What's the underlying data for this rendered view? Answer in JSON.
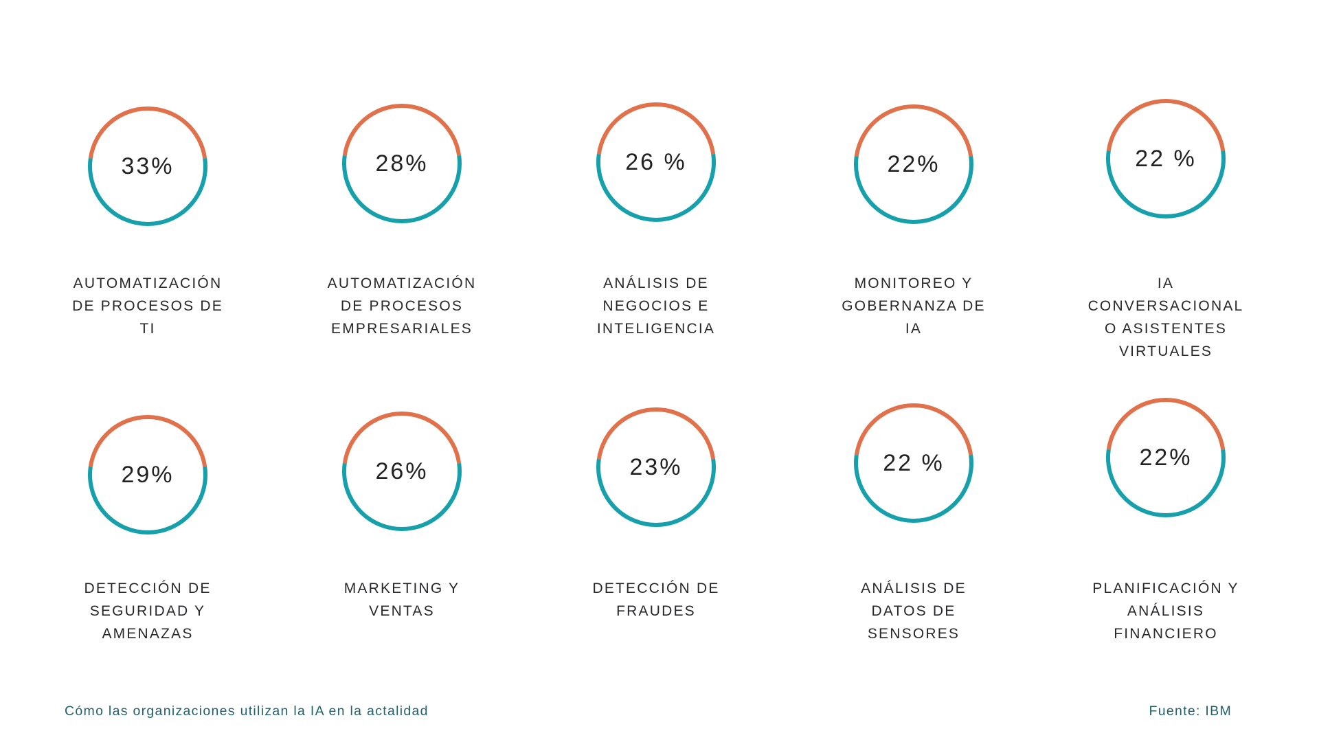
{
  "page": {
    "background": "#FFFFFF"
  },
  "chart_data": {
    "type": "pie",
    "variant": "donut-grid",
    "title": "Cómo las organizaciones utilizan la IA en la actalidad",
    "source": "Fuente: IBM",
    "legend_position": "none",
    "grid": {
      "columns": 5,
      "rows": 2
    },
    "colors": {
      "arc_top_orange": "#E0714A",
      "arc_bottom_teal": "#16A0AC",
      "value_text": "#222222",
      "label_text": "#28282B",
      "caption_text": "#21616C",
      "background": "#FFFFFF"
    },
    "arc_degrees": {
      "orange_start": 278,
      "orange_end": 442,
      "teal_start": 82,
      "teal_end": 278
    },
    "categories": [
      "AUTOMATIZACIÓN DE PROCESOS DE TI",
      "AUTOMATIZACIÓN DE PROCESOS EMPRESARIALES",
      "ANÁLISIS DE NEGOCIOS E INTELIGENCIA",
      "MONITOREO Y GOBERNANZA DE IA",
      "IA CONVERSACIONAL O ASISTENTES VIRTUALES",
      "DETECCIÓN DE SEGURIDAD Y AMENAZAS",
      "MARKETING Y VENTAS",
      "DETECCIÓN DE FRAUDES",
      "ANÁLISIS DE DATOS DE SENSORES",
      "PLANIFICACIÓN Y ANÁLISIS FINANCIERO"
    ],
    "values": [
      33,
      28,
      26,
      22,
      22,
      29,
      26,
      23,
      22,
      22
    ],
    "items": [
      {
        "value": 33,
        "display": "33%",
        "label": "AUTOMATIZACIÓN DE PROCESOS DE TI",
        "label_lines": [
          "AUTOMATIZACIÓN",
          "DE PROCESOS DE",
          "TI"
        ]
      },
      {
        "value": 28,
        "display": "28%",
        "label": "AUTOMATIZACIÓN DE PROCESOS EMPRESARIALES",
        "label_lines": [
          "AUTOMATIZACIÓN",
          "DE PROCESOS",
          "EMPRESARIALES"
        ]
      },
      {
        "value": 26,
        "display": "26 %",
        "label": "ANÁLISIS DE NEGOCIOS E INTELIGENCIA",
        "label_lines": [
          "ANÁLISIS DE",
          "NEGOCIOS E",
          "INTELIGENCIA"
        ]
      },
      {
        "value": 22,
        "display": "22%",
        "label": "MONITOREO Y GOBERNANZA DE IA",
        "label_lines": [
          "MONITOREO Y",
          "GOBERNANZA DE",
          "IA"
        ]
      },
      {
        "value": 22,
        "display": "22 %",
        "label": "IA CONVERSACIONAL O ASISTENTES VIRTUALES",
        "label_lines": [
          "IA",
          "CONVERSACIONAL",
          "O ASISTENTES",
          "VIRTUALES"
        ]
      },
      {
        "value": 29,
        "display": "29%",
        "label": "DETECCIÓN DE SEGURIDAD Y AMENAZAS",
        "label_lines": [
          "DETECCIÓN DE",
          "SEGURIDAD Y",
          "AMENAZAS"
        ]
      },
      {
        "value": 26,
        "display": "26%",
        "label": "MARKETING Y VENTAS",
        "label_lines": [
          "MARKETING Y",
          "VENTAS"
        ]
      },
      {
        "value": 23,
        "display": "23%",
        "label": "DETECCIÓN DE FRAUDES",
        "label_lines": [
          "DETECCIÓN DE",
          "FRAUDES"
        ]
      },
      {
        "value": 22,
        "display": "22 %",
        "label": "ANÁLISIS DE DATOS DE SENSORES",
        "label_lines": [
          "ANÁLISIS DE",
          "DATOS DE",
          "SENSORES"
        ]
      },
      {
        "value": 22,
        "display": "22%",
        "label": "PLANIFICACIÓN Y ANÁLISIS FINANCIERO",
        "label_lines": [
          "PLANIFICACIÓN Y",
          "ANÁLISIS",
          "FINANCIERO"
        ]
      }
    ]
  }
}
